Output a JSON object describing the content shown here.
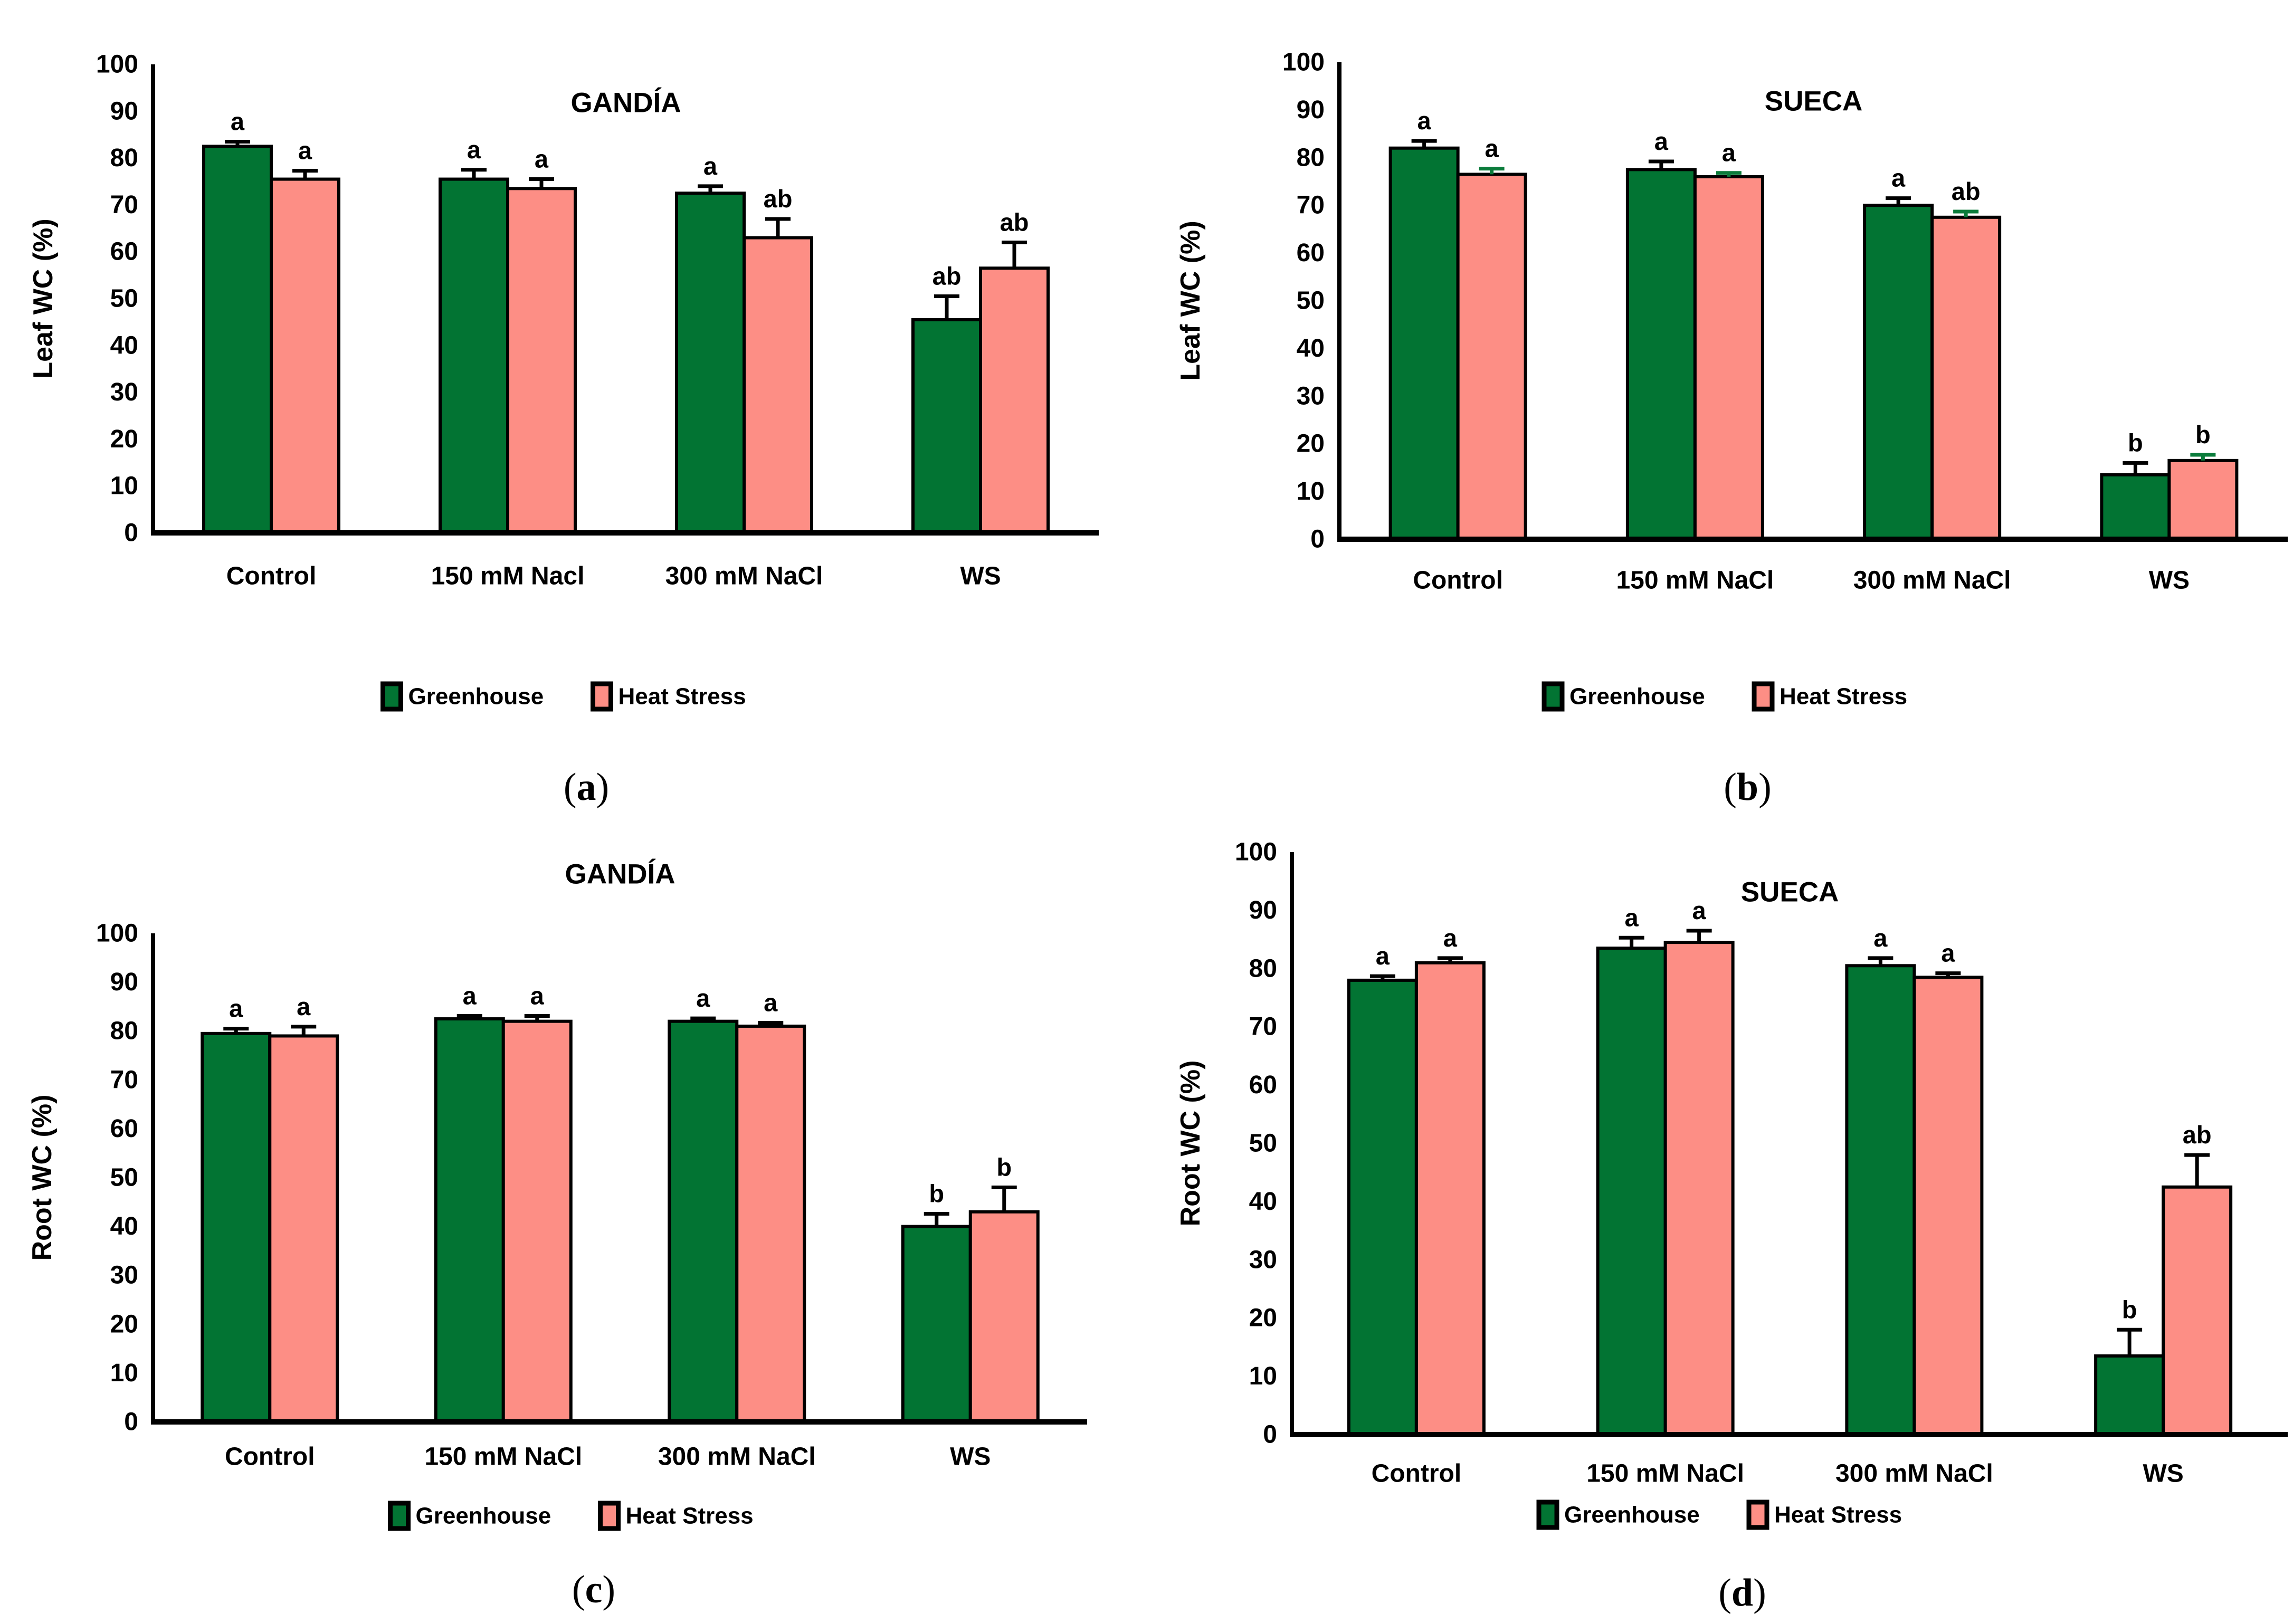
{
  "page": {
    "background": "#FFFFFF"
  },
  "colors": {
    "greenhouse": "#027433",
    "heat_stress": "#FD8E85",
    "bar_outline": "#000000",
    "axis": "#000000",
    "text": "#000000",
    "error_default": "#000000",
    "error_green": "#0B7C3B"
  },
  "legend_labels": [
    "Greenhouse",
    "Heat Stress"
  ],
  "chart_data": [
    {
      "id": "a",
      "type": "bar",
      "title": "GANDÍA",
      "ylabel": "Leaf WC (%)",
      "caption": "a",
      "ylim": [
        0,
        100
      ],
      "ytick_step": 10,
      "grid": false,
      "legend_position": "bottom",
      "categories": [
        "Control",
        "150 mM Nacl",
        "300 mM NaCl",
        "WS"
      ],
      "series": [
        {
          "name": "Greenhouse",
          "color": "#027433",
          "error_color": "#000000",
          "values": [
            82.5,
            75.5,
            72.5,
            45.5
          ],
          "errors": [
            1,
            2,
            1.5,
            5
          ],
          "letters": [
            "a",
            "a",
            "a",
            "ab"
          ]
        },
        {
          "name": "Heat Stress",
          "color": "#FD8E85",
          "error_color": "#000000",
          "values": [
            75.5,
            73.5,
            63,
            56.5
          ],
          "errors": [
            1.8,
            2,
            4,
            5.5
          ],
          "letters": [
            "a",
            "a",
            "ab",
            "ab"
          ]
        }
      ]
    },
    {
      "id": "b",
      "type": "bar",
      "title": "SUECA",
      "ylabel": "Leaf WC (%)",
      "caption": "b",
      "ylim": [
        0,
        100
      ],
      "ytick_step": 10,
      "grid": false,
      "legend_position": "bottom",
      "categories": [
        "Control",
        "150 mM NaCl",
        "300 mM NaCl",
        "WS"
      ],
      "series": [
        {
          "name": "Greenhouse",
          "color": "#027433",
          "error_color": "#000000",
          "values": [
            82,
            77.5,
            70,
            13.5
          ],
          "errors": [
            1.5,
            1.7,
            1.5,
            2.5
          ],
          "letters": [
            "a",
            "a",
            "a",
            "b"
          ]
        },
        {
          "name": "Heat Stress",
          "color": "#FD8E85",
          "error_color": "#0B7C3B",
          "values": [
            76.5,
            76,
            67.5,
            16.5
          ],
          "errors": [
            1.2,
            0.8,
            1.2,
            1.2
          ],
          "letters": [
            "a",
            "a",
            "ab",
            "b"
          ]
        }
      ]
    },
    {
      "id": "c",
      "type": "bar",
      "title": "GANDÍA",
      "ylabel": "Root WC (%)",
      "caption": "c",
      "ylim": [
        0,
        100
      ],
      "ytick_step": 10,
      "grid": false,
      "legend_position": "bottom",
      "categories": [
        "Control",
        "150 mM NaCl",
        "300 mM NaCl",
        "WS"
      ],
      "series": [
        {
          "name": "Greenhouse",
          "color": "#027433",
          "error_color": "#000000",
          "values": [
            79.5,
            82.5,
            82,
            40
          ],
          "errors": [
            1,
            0.6,
            0.6,
            2.6
          ],
          "letters": [
            "a",
            "a",
            "a",
            "b"
          ]
        },
        {
          "name": "Heat Stress",
          "color": "#FD8E85",
          "error_color": "#000000",
          "values": [
            79,
            82,
            81,
            43
          ],
          "errors": [
            1.9,
            1.1,
            0.7,
            5
          ],
          "letters": [
            "a",
            "a",
            "a",
            "b"
          ]
        }
      ]
    },
    {
      "id": "d",
      "type": "bar",
      "title": "SUECA",
      "ylabel": "Root WC (%)",
      "caption": "d",
      "ylim": [
        0,
        100
      ],
      "ytick_step": 10,
      "grid": false,
      "legend_position": "bottom",
      "categories": [
        "Control",
        "150 mM NaCl",
        "300 mM NaCl",
        "WS"
      ],
      "series": [
        {
          "name": "Greenhouse",
          "color": "#027433",
          "error_color": "#000000",
          "values": [
            78,
            83.5,
            80.5,
            13.5
          ],
          "errors": [
            0.7,
            1.8,
            1.3,
            4.5
          ],
          "letters": [
            "a",
            "a",
            "a",
            "b"
          ]
        },
        {
          "name": "Heat Stress",
          "color": "#FD8E85",
          "error_color": "#000000",
          "values": [
            81,
            84.5,
            78.5,
            42.5
          ],
          "errors": [
            0.8,
            2,
            0.7,
            5.5
          ],
          "letters": [
            "a",
            "a",
            "a",
            "ab"
          ]
        }
      ]
    }
  ]
}
